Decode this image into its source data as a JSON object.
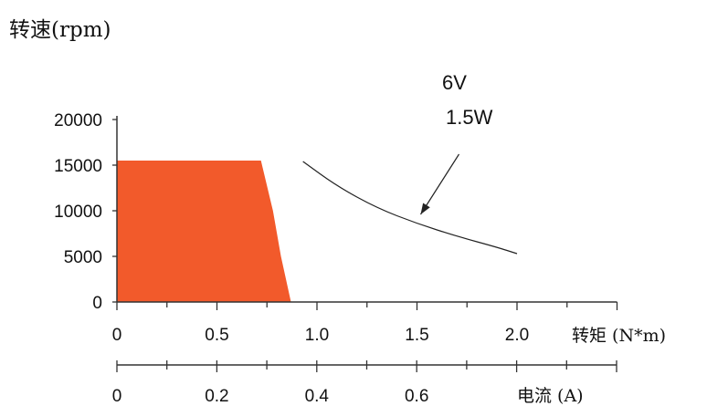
{
  "chart_data": {
    "type": "area",
    "ylabel": "转速(rpm)",
    "xlabel": "转矩 (N*m)",
    "x2label": "电流 (A)",
    "ylim": [
      0,
      20000
    ],
    "xlim": [
      0,
      2.5
    ],
    "yticks": [
      "0",
      "5000",
      "10000",
      "15000",
      "20000"
    ],
    "xticks": [
      "0",
      "0.5",
      "1.0",
      "1.5",
      "2.0"
    ],
    "x2ticks": [
      "0",
      "0.2",
      "0.4",
      "0.6"
    ],
    "x2lim": [
      0,
      1.0
    ],
    "colors": {
      "region": "#f25a2b",
      "line": "#222222",
      "axis": "#333333"
    },
    "series": [
      {
        "kind": "area",
        "x": [
          0,
          0.72,
          0.78,
          0.82,
          0.87,
          0
        ],
        "y": [
          15500,
          15500,
          10000,
          5000,
          0,
          0
        ]
      },
      {
        "kind": "line",
        "x": [
          0.93,
          1.1,
          1.3,
          1.5,
          1.7,
          1.9,
          2.0
        ],
        "y": [
          15400,
          12700,
          10300,
          8600,
          7200,
          6000,
          5300
        ]
      }
    ],
    "annotation": {
      "lines": [
        "6V",
        "1.5W"
      ],
      "points_to": {
        "x": 1.5,
        "y": 9000
      }
    }
  }
}
